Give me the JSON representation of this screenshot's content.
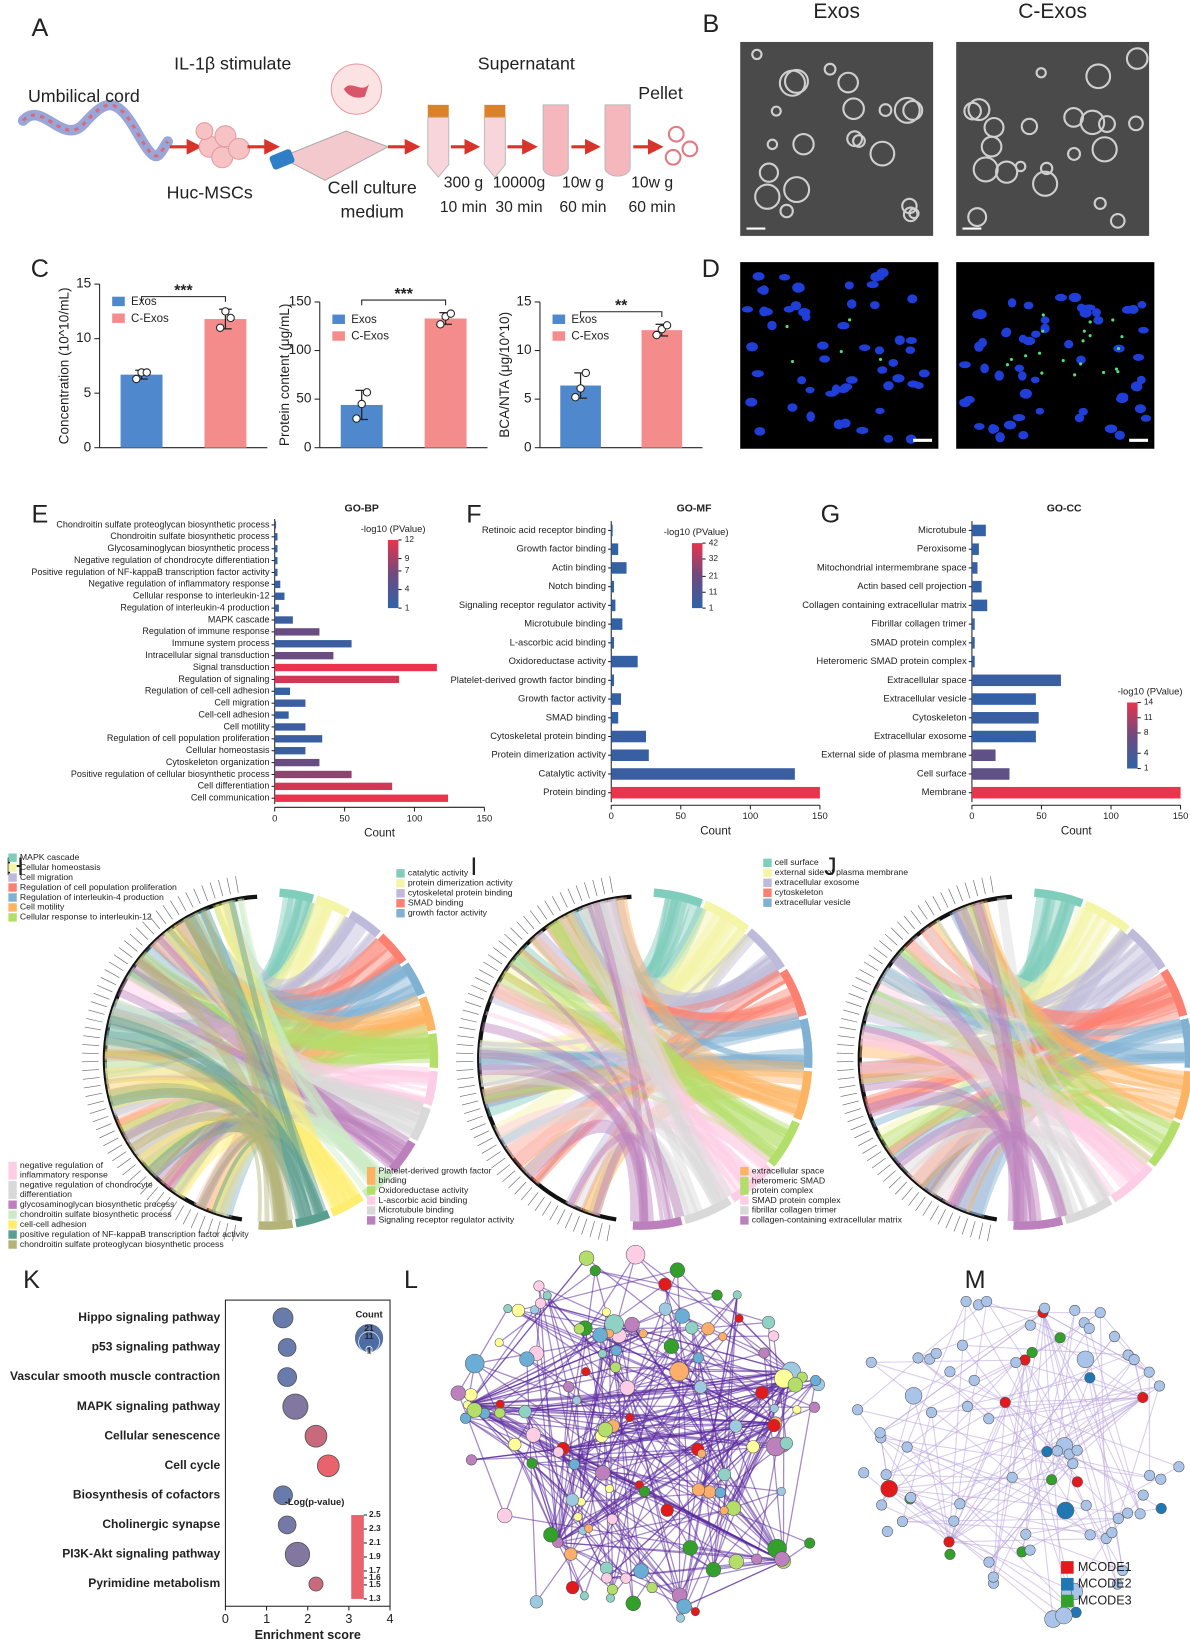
{
  "panel_letters": [
    "A",
    "B",
    "C",
    "D",
    "E",
    "F",
    "G",
    "H",
    "I",
    "J",
    "K",
    "L",
    "M"
  ],
  "workflow": {
    "source": "Umbilical cord",
    "stimulus": "IL-1β stimulate",
    "cells": "Huc-MSCs",
    "medium": [
      "Cell culture",
      "medium"
    ],
    "supernatant": "Supernatant",
    "pellet": "Pellet",
    "spins": [
      [
        "300 g",
        "10 min"
      ],
      [
        "10000g",
        "30 min"
      ],
      [
        "10w g",
        "60 min"
      ],
      [
        "10w g",
        "60 min"
      ]
    ]
  },
  "micrographs": [
    "Exos",
    "C-Exos"
  ],
  "chart_data": [
    {
      "type": "bar",
      "ylabel": "Concentration (10^10/mL)",
      "categories": [
        "Exos",
        "C-Exos"
      ],
      "colors": [
        "#4f88cc",
        "#f48c8c"
      ],
      "values": [
        6.7,
        11.8
      ],
      "errors": [
        0.4,
        0.9
      ],
      "points": [
        [
          6.3,
          6.9,
          6.9
        ],
        [
          11.0,
          12.5,
          11.9
        ]
      ],
      "significance": "***",
      "ylim": [
        0,
        15
      ],
      "yticks": [
        0,
        5,
        10,
        15
      ]
    },
    {
      "type": "bar",
      "ylabel": "Protein content (μg/mL)",
      "categories": [
        "Exos",
        "C-Exos"
      ],
      "colors": [
        "#4f88cc",
        "#f48c8c"
      ],
      "values": [
        44,
        133
      ],
      "errors": [
        15,
        6
      ],
      "points": [
        [
          30,
          45,
          57
        ],
        [
          127,
          135,
          138
        ]
      ],
      "significance": "***",
      "ylim": [
        0,
        150
      ],
      "yticks": [
        0,
        50,
        100,
        150
      ]
    },
    {
      "type": "bar",
      "ylabel": "BCA/NTA (μg/10^10)",
      "categories": [
        "Exos",
        "C-Exos"
      ],
      "colors": [
        "#4f88cc",
        "#f48c8c"
      ],
      "values": [
        6.4,
        12.1
      ],
      "errors": [
        1.3,
        0.6
      ],
      "points": [
        [
          5.2,
          6.1,
          7.7
        ],
        [
          11.6,
          12.2,
          12.6
        ]
      ],
      "significance": "**",
      "ylim": [
        0,
        15
      ],
      "yticks": [
        0,
        5,
        10,
        15
      ]
    },
    {
      "type": "barh",
      "title": "GO-BP",
      "xlabel": "Count",
      "categories": [
        "Chondroitin sulfate proteoglycan biosynthetic process",
        "Chondroitin sulfate biosynthetic process",
        "Glycosaminoglycan biosynthetic process",
        "Negative regulation of chondrocyte differentiation",
        "Positive regulation of NF-kappaB transcription factor activity",
        "Negative regulation of inflammatory response",
        "Cellular response to interleukin-12",
        "Regulation of interleukin-4 production",
        "MAPK cascade",
        "Regulation of immune response",
        "Immune system process",
        "Intracellular signal transduction",
        "Signal transduction",
        "Regulation of signaling",
        "Regulation of cell-cell adhesion",
        "Cell migration",
        "Cell-cell adhesion",
        "Cell motility",
        "Regulation of cell population proliferation",
        "Cellular homeostasis",
        "Cytoskeleton organization",
        "Positive regulation of cellular biosynthetic process",
        "Cell differentiation",
        "Cell communication"
      ],
      "values": [
        1,
        2,
        2,
        2,
        2,
        4,
        7,
        3,
        13,
        32,
        55,
        42,
        116,
        89,
        11,
        22,
        10,
        22,
        34,
        22,
        32,
        55,
        84,
        124
      ],
      "pvalues": [
        1.5,
        1.5,
        1.5,
        1.5,
        1.5,
        1.5,
        1.5,
        1.5,
        2,
        6,
        2,
        6,
        12,
        11,
        1.5,
        2,
        1.5,
        2,
        2,
        2,
        6,
        8,
        11,
        12
      ],
      "xlim": [
        0,
        150
      ],
      "xticks": [
        0,
        50,
        100,
        150
      ],
      "colorbar": {
        "title": "-log10 (PValue)",
        "lim": [
          1,
          12
        ],
        "ticks": [
          12,
          9,
          7,
          4,
          1
        ],
        "colormap": [
          "#2f63a8",
          "#6e4a7e",
          "#e8344c"
        ]
      }
    },
    {
      "type": "barh",
      "title": "GO-MF",
      "xlabel": "Count",
      "categories": [
        "Retinoic acid receptor binding",
        "Growth factor binding",
        "Actin binding",
        "Notch binding",
        "Signaling receptor regulator activity",
        "Microtubule binding",
        "L-ascorbic acid binding",
        "Oxidoreductase activity",
        "Platelet-derived growth factor binding",
        "Growth factor activity",
        "SMAD binding",
        "Cytoskeletal protein binding",
        "Protein dimerization activity",
        "Catalytic activity",
        "Protein binding"
      ],
      "values": [
        1,
        5,
        11,
        2,
        3,
        8,
        2,
        19,
        2,
        7,
        5,
        25,
        27,
        132,
        150
      ],
      "pvalues": [
        1.5,
        2,
        3,
        1.5,
        2,
        2,
        1.5,
        3,
        1.5,
        2,
        2,
        4,
        4,
        5,
        42
      ],
      "xlim": [
        0,
        150
      ],
      "xticks": [
        0,
        50,
        100,
        150
      ],
      "colorbar": {
        "title": "-log10 (PValue)",
        "lim": [
          1,
          42
        ],
        "ticks": [
          42,
          32,
          21,
          11,
          1
        ],
        "colormap": [
          "#2f63a8",
          "#6e4a7e",
          "#e8344c"
        ]
      }
    },
    {
      "type": "barh",
      "title": "GO-CC",
      "xlabel": "Count",
      "categories": [
        "Microtubule",
        "Peroxisome",
        "Mitochondrial intermembrane space",
        "Actin based cell projection",
        "Collagen containing extracellular matrix",
        "Fibrillar collagen trimer",
        "SMAD protein complex",
        "Heteromeric SMAD protein complex",
        "Extracellular space",
        "Extracellular vesicle",
        "Cytoskeleton",
        "Extracellular exosome",
        "External side of plasma membrane",
        "Cell surface",
        "Membrane"
      ],
      "values": [
        10,
        5,
        4,
        7,
        11,
        2,
        2,
        2,
        64,
        46,
        48,
        46,
        17,
        27,
        150
      ],
      "pvalues": [
        1.5,
        1.5,
        1.5,
        1.5,
        1.5,
        1.5,
        1.5,
        1.5,
        2,
        1.5,
        2,
        1.5,
        6,
        6,
        14
      ],
      "xlim": [
        0,
        150
      ],
      "xticks": [
        0,
        50,
        100,
        150
      ],
      "colorbar": {
        "title": "-log10 (PValue)",
        "lim": [
          1,
          14
        ],
        "ticks": [
          14,
          11,
          8,
          4,
          1
        ],
        "colormap": [
          "#2f63a8",
          "#6e4a7e",
          "#e8344c"
        ]
      }
    },
    {
      "type": "bubble",
      "xlabel": "Enrichment score",
      "categories": [
        "Hippo signaling pathway",
        "p53 signaling pathway",
        "Vascular smooth muscle contraction",
        "MAPK signaling pathway",
        "Cellular senescence",
        "Cell cycle",
        "Biosynthesis of cofactors",
        "Cholinergic synapse",
        "PI3K-Akt signaling pathway",
        "Pyrimidine metabolism"
      ],
      "values": [
        1.4,
        1.5,
        1.5,
        1.7,
        2.2,
        2.5,
        1.4,
        1.5,
        1.75,
        2.2
      ],
      "sizes": [
        10,
        8,
        9,
        16,
        12,
        12,
        9,
        8,
        15,
        5
      ],
      "pvalues": [
        1.4,
        1.4,
        1.4,
        1.6,
        2.2,
        2.5,
        1.4,
        1.5,
        1.6,
        2.2
      ],
      "xlim": [
        0,
        4
      ],
      "xticks": [
        0,
        1,
        2,
        3,
        4
      ],
      "size_legend": {
        "title": "Count",
        "values": [
          21,
          11,
          1
        ]
      },
      "colorbar": {
        "title": "-Log(p-value)",
        "lim": [
          1.3,
          2.5
        ],
        "ticks": [
          2.5,
          2.3,
          2.1,
          1.9,
          1.7,
          1.6,
          1.5,
          1.3
        ],
        "colormap": [
          "#e8636b",
          "#a8708e",
          "#5b7db3"
        ]
      }
    }
  ],
  "chord_legends": [
    {
      "top": [
        [
          "MAPK cascade",
          "#7fcdbb"
        ],
        [
          "Cellular homeostasis",
          "#f5f5a8"
        ],
        [
          "Cell migration",
          "#bebada"
        ],
        [
          "Regulation of cell population proliferation",
          "#fb8072"
        ],
        [
          "Regulation of interleukin-4 production",
          "#80b1d3"
        ],
        [
          "Cell motility",
          "#fdb462"
        ],
        [
          "Cellular response to interleukin-12",
          "#b3de69"
        ]
      ],
      "bottom": [
        [
          [
            "negative regulation of",
            "inflammatory response"
          ],
          "#fccde5"
        ],
        [
          [
            "negative regulation of chondrocyte",
            "differentiation"
          ],
          "#d9d9d9"
        ],
        [
          [
            "glycosaminoglycan biosynthetic process"
          ],
          "#bc80bd"
        ],
        [
          [
            "chondroitin sulfate biosynthetic process"
          ],
          "#ccebc5"
        ],
        [
          [
            "cell-cell adhesion"
          ],
          "#ffed6f"
        ],
        [
          [
            "positive regulation of NF-kappaB transcription factor activity"
          ],
          "#5a9e8f"
        ],
        [
          [
            "chondroitin sulfate proteoglycan biosynthetic process"
          ],
          "#b3b37a"
        ]
      ]
    },
    {
      "top": [
        [
          "catalytic activity",
          "#7fcdbb"
        ],
        [
          "protein dimerization activity",
          "#f5f5a8"
        ],
        [
          "cytoskeletal protein binding",
          "#bebada"
        ],
        [
          "SMAD binding",
          "#fb8072"
        ],
        [
          "growth factor activity",
          "#80b1d3"
        ]
      ],
      "bottom": [
        [
          [
            "Platelet-derived growth factor",
            "binding"
          ],
          "#fdb462"
        ],
        [
          [
            "Oxidoreductase activity"
          ],
          "#b3de69"
        ],
        [
          [
            "L-ascorbic acid binding"
          ],
          "#fccde5"
        ],
        [
          [
            "Microtubule binding"
          ],
          "#d9d9d9"
        ],
        [
          [
            "Signaling receptor regulator activity"
          ],
          "#bc80bd"
        ]
      ]
    },
    {
      "top": [
        [
          "cell surface",
          "#7fcdbb"
        ],
        [
          "external side of plasma membrane",
          "#f5f5a8"
        ],
        [
          "extracellular exosome",
          "#bebada"
        ],
        [
          "cytoskeleton",
          "#fb8072"
        ],
        [
          "extracellular vesicle",
          "#80b1d3"
        ]
      ],
      "bottom": [
        [
          [
            "extracellular space"
          ],
          "#fdb462"
        ],
        [
          [
            "heteromeric SMAD",
            "protein complex"
          ],
          "#b3de69"
        ],
        [
          [
            "SMAD protein complex"
          ],
          "#fccde5"
        ],
        [
          [
            "fibrillar collagen trimer"
          ],
          "#d9d9d9"
        ],
        [
          [
            "collagen-containing extracellular matrix"
          ],
          "#bc80bd"
        ]
      ]
    }
  ],
  "network_legend": [
    [
      "MCODE1",
      "#e31a1c"
    ],
    [
      "MCODE2",
      "#1f78b4"
    ],
    [
      "MCODE3",
      "#33a02c"
    ]
  ]
}
